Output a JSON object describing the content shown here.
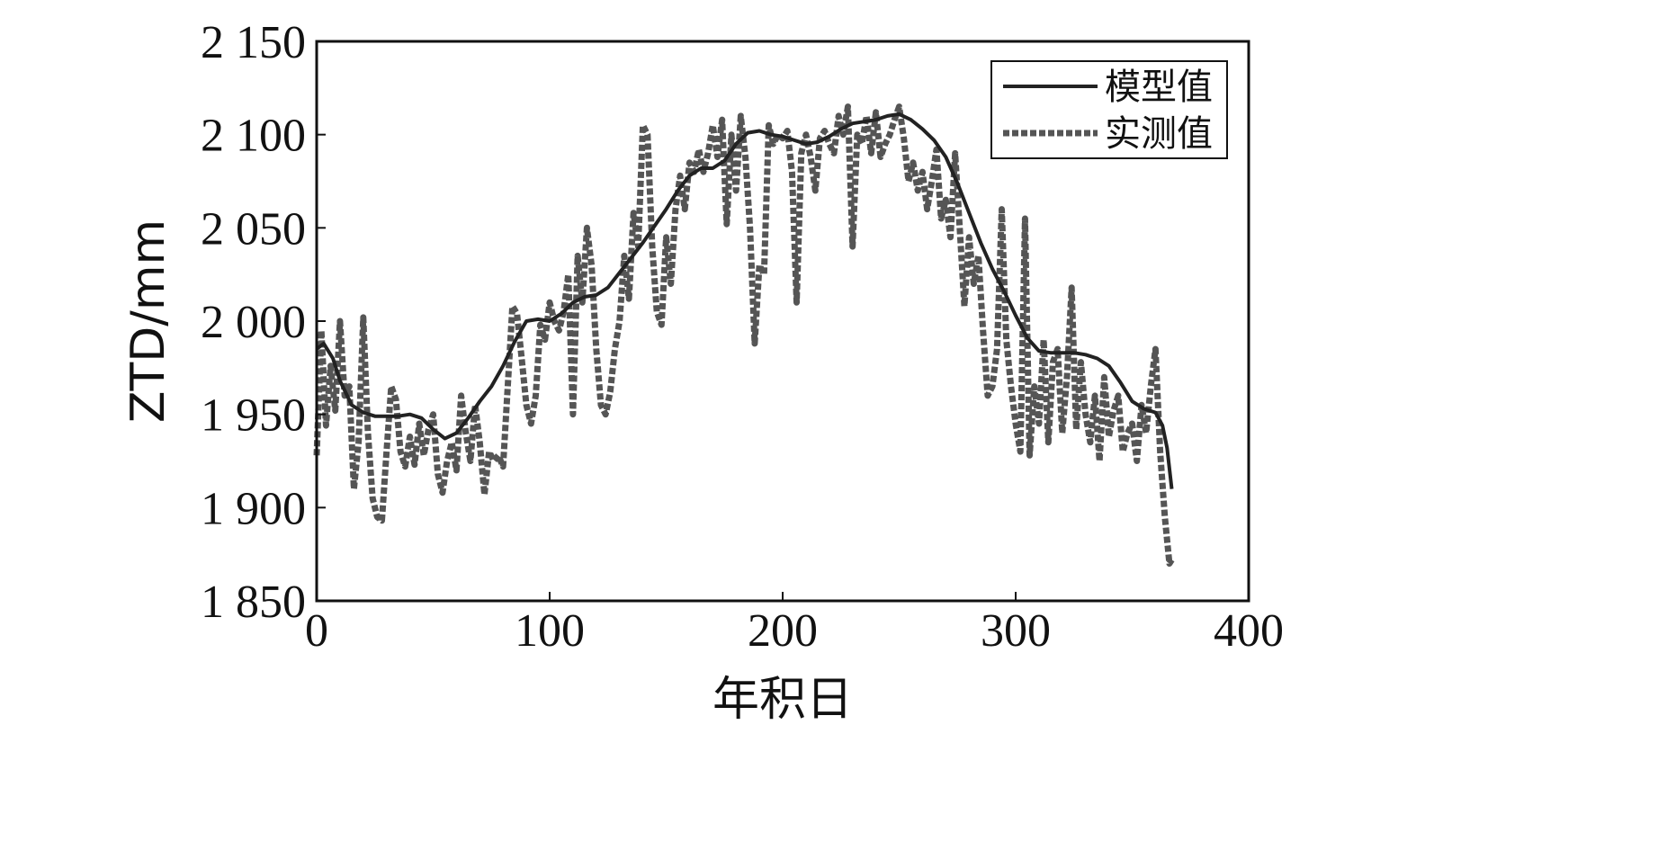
{
  "chart_data": {
    "type": "line",
    "title": "",
    "xlabel": "年积日",
    "ylabel": "ZTD/mm",
    "xlim": [
      0,
      400
    ],
    "ylim": [
      1850,
      2150
    ],
    "x_ticks": [
      0,
      100,
      200,
      300,
      400
    ],
    "x_tick_labels": [
      "0",
      "100",
      "200",
      "300",
      "400"
    ],
    "y_ticks": [
      1850,
      1900,
      1950,
      2000,
      2050,
      2100,
      2150
    ],
    "y_tick_labels": [
      "1 850",
      "1 900",
      "1 950",
      "2 000",
      "2 050",
      "2 100",
      "2 150"
    ],
    "grid": false,
    "legend_position": "top-right",
    "series": [
      {
        "name": "模型值",
        "style": "solid",
        "color": "#222222",
        "points": [
          [
            0,
            1985
          ],
          [
            3,
            1988
          ],
          [
            7,
            1980
          ],
          [
            10,
            1968
          ],
          [
            15,
            1955
          ],
          [
            20,
            1951
          ],
          [
            25,
            1949
          ],
          [
            30,
            1949
          ],
          [
            35,
            1949
          ],
          [
            40,
            1950
          ],
          [
            45,
            1948
          ],
          [
            50,
            1942
          ],
          [
            55,
            1937
          ],
          [
            60,
            1940
          ],
          [
            65,
            1948
          ],
          [
            70,
            1957
          ],
          [
            75,
            1965
          ],
          [
            80,
            1976
          ],
          [
            85,
            1989
          ],
          [
            90,
            2000
          ],
          [
            95,
            2001
          ],
          [
            100,
            2000
          ],
          [
            105,
            2004
          ],
          [
            110,
            2010
          ],
          [
            115,
            2013
          ],
          [
            120,
            2014
          ],
          [
            125,
            2018
          ],
          [
            130,
            2026
          ],
          [
            135,
            2034
          ],
          [
            140,
            2042
          ],
          [
            145,
            2051
          ],
          [
            150,
            2060
          ],
          [
            155,
            2070
          ],
          [
            160,
            2078
          ],
          [
            165,
            2082
          ],
          [
            170,
            2082
          ],
          [
            175,
            2086
          ],
          [
            180,
            2095
          ],
          [
            185,
            2101
          ],
          [
            190,
            2102
          ],
          [
            195,
            2100
          ],
          [
            200,
            2099
          ],
          [
            205,
            2097
          ],
          [
            210,
            2095
          ],
          [
            215,
            2096
          ],
          [
            220,
            2099
          ],
          [
            225,
            2103
          ],
          [
            230,
            2106
          ],
          [
            235,
            2107
          ],
          [
            240,
            2108
          ],
          [
            245,
            2110
          ],
          [
            250,
            2111
          ],
          [
            255,
            2108
          ],
          [
            260,
            2103
          ],
          [
            265,
            2097
          ],
          [
            270,
            2088
          ],
          [
            275,
            2074
          ],
          [
            280,
            2058
          ],
          [
            285,
            2042
          ],
          [
            290,
            2028
          ],
          [
            295,
            2016
          ],
          [
            300,
            2003
          ],
          [
            305,
            1991
          ],
          [
            310,
            1984
          ],
          [
            315,
            1983
          ],
          [
            320,
            1983
          ],
          [
            325,
            1983
          ],
          [
            330,
            1982
          ],
          [
            335,
            1980
          ],
          [
            340,
            1976
          ],
          [
            345,
            1967
          ],
          [
            350,
            1957
          ],
          [
            355,
            1953
          ],
          [
            360,
            1951
          ],
          [
            363,
            1944
          ],
          [
            365,
            1932
          ],
          [
            367,
            1910
          ]
        ]
      },
      {
        "name": "实测值",
        "style": "dashed",
        "color": "#555555",
        "points": [
          [
            0,
            1928
          ],
          [
            2,
            1995
          ],
          [
            4,
            1944
          ],
          [
            6,
            1976
          ],
          [
            8,
            1952
          ],
          [
            10,
            2000
          ],
          [
            12,
            1960
          ],
          [
            14,
            1965
          ],
          [
            16,
            1910
          ],
          [
            18,
            1935
          ],
          [
            20,
            2002
          ],
          [
            22,
            1940
          ],
          [
            24,
            1905
          ],
          [
            26,
            1895
          ],
          [
            28,
            1893
          ],
          [
            30,
            1930
          ],
          [
            32,
            1965
          ],
          [
            34,
            1958
          ],
          [
            36,
            1930
          ],
          [
            38,
            1922
          ],
          [
            40,
            1938
          ],
          [
            42,
            1923
          ],
          [
            44,
            1945
          ],
          [
            46,
            1928
          ],
          [
            48,
            1942
          ],
          [
            50,
            1950
          ],
          [
            52,
            1918
          ],
          [
            54,
            1908
          ],
          [
            56,
            1925
          ],
          [
            58,
            1935
          ],
          [
            60,
            1920
          ],
          [
            62,
            1960
          ],
          [
            64,
            1940
          ],
          [
            66,
            1925
          ],
          [
            68,
            1955
          ],
          [
            70,
            1935
          ],
          [
            72,
            1907
          ],
          [
            74,
            1930
          ],
          [
            76,
            1925
          ],
          [
            78,
            1928
          ],
          [
            80,
            1922
          ],
          [
            82,
            1965
          ],
          [
            84,
            2008
          ],
          [
            86,
            2004
          ],
          [
            88,
            1980
          ],
          [
            90,
            1955
          ],
          [
            92,
            1945
          ],
          [
            94,
            1960
          ],
          [
            96,
            1998
          ],
          [
            98,
            1990
          ],
          [
            100,
            2010
          ],
          [
            102,
            2000
          ],
          [
            104,
            1995
          ],
          [
            106,
            2005
          ],
          [
            108,
            2025
          ],
          [
            110,
            1950
          ],
          [
            112,
            2035
          ],
          [
            114,
            2010
          ],
          [
            116,
            2050
          ],
          [
            118,
            2030
          ],
          [
            120,
            1985
          ],
          [
            122,
            1955
          ],
          [
            124,
            1950
          ],
          [
            126,
            1962
          ],
          [
            128,
            1985
          ],
          [
            130,
            2000
          ],
          [
            132,
            2035
          ],
          [
            134,
            2012
          ],
          [
            136,
            2058
          ],
          [
            138,
            2040
          ],
          [
            140,
            2105
          ],
          [
            142,
            2100
          ],
          [
            144,
            2040
          ],
          [
            146,
            2005
          ],
          [
            148,
            1998
          ],
          [
            150,
            2045
          ],
          [
            152,
            2020
          ],
          [
            154,
            2060
          ],
          [
            156,
            2078
          ],
          [
            158,
            2060
          ],
          [
            160,
            2085
          ],
          [
            162,
            2080
          ],
          [
            164,
            2092
          ],
          [
            166,
            2080
          ],
          [
            168,
            2090
          ],
          [
            170,
            2105
          ],
          [
            172,
            2088
          ],
          [
            174,
            2108
          ],
          [
            176,
            2052
          ],
          [
            178,
            2100
          ],
          [
            180,
            2070
          ],
          [
            182,
            2110
          ],
          [
            184,
            2088
          ],
          [
            186,
            2050
          ],
          [
            188,
            1988
          ],
          [
            190,
            2030
          ],
          [
            192,
            2025
          ],
          [
            194,
            2105
          ],
          [
            196,
            2095
          ],
          [
            198,
            2100
          ],
          [
            200,
            2098
          ],
          [
            202,
            2102
          ],
          [
            204,
            2080
          ],
          [
            206,
            2010
          ],
          [
            208,
            2090
          ],
          [
            210,
            2100
          ],
          [
            212,
            2088
          ],
          [
            214,
            2070
          ],
          [
            216,
            2098
          ],
          [
            218,
            2102
          ],
          [
            220,
            2095
          ],
          [
            222,
            2090
          ],
          [
            224,
            2110
          ],
          [
            226,
            2100
          ],
          [
            228,
            2115
          ],
          [
            230,
            2040
          ],
          [
            232,
            2100
          ],
          [
            234,
            2095
          ],
          [
            236,
            2110
          ],
          [
            238,
            2090
          ],
          [
            240,
            2112
          ],
          [
            242,
            2088
          ],
          [
            244,
            2095
          ],
          [
            246,
            2100
          ],
          [
            248,
            2108
          ],
          [
            250,
            2115
          ],
          [
            252,
            2098
          ],
          [
            254,
            2075
          ],
          [
            256,
            2085
          ],
          [
            258,
            2070
          ],
          [
            260,
            2080
          ],
          [
            262,
            2060
          ],
          [
            264,
            2075
          ],
          [
            266,
            2092
          ],
          [
            268,
            2055
          ],
          [
            270,
            2065
          ],
          [
            272,
            2045
          ],
          [
            274,
            2090
          ],
          [
            276,
            2050
          ],
          [
            278,
            2008
          ],
          [
            280,
            2045
          ],
          [
            282,
            2020
          ],
          [
            284,
            2035
          ],
          [
            286,
            1995
          ],
          [
            288,
            1960
          ],
          [
            290,
            1965
          ],
          [
            292,
            1985
          ],
          [
            294,
            2060
          ],
          [
            296,
            1990
          ],
          [
            298,
            1965
          ],
          [
            300,
            1945
          ],
          [
            302,
            1930
          ],
          [
            304,
            2055
          ],
          [
            306,
            1928
          ],
          [
            308,
            1965
          ],
          [
            310,
            1945
          ],
          [
            312,
            1990
          ],
          [
            314,
            1935
          ],
          [
            316,
            1978
          ],
          [
            318,
            1985
          ],
          [
            320,
            1940
          ],
          [
            322,
            1970
          ],
          [
            324,
            2018
          ],
          [
            326,
            1942
          ],
          [
            328,
            1978
          ],
          [
            330,
            1950
          ],
          [
            332,
            1935
          ],
          [
            334,
            1960
          ],
          [
            336,
            1925
          ],
          [
            338,
            1970
          ],
          [
            340,
            1938
          ],
          [
            342,
            1952
          ],
          [
            344,
            1960
          ],
          [
            346,
            1930
          ],
          [
            348,
            1940
          ],
          [
            350,
            1945
          ],
          [
            352,
            1925
          ],
          [
            354,
            1955
          ],
          [
            356,
            1940
          ],
          [
            358,
            1965
          ],
          [
            360,
            1985
          ],
          [
            362,
            1930
          ],
          [
            364,
            1895
          ],
          [
            366,
            1870
          ],
          [
            367,
            1872
          ]
        ]
      }
    ]
  }
}
